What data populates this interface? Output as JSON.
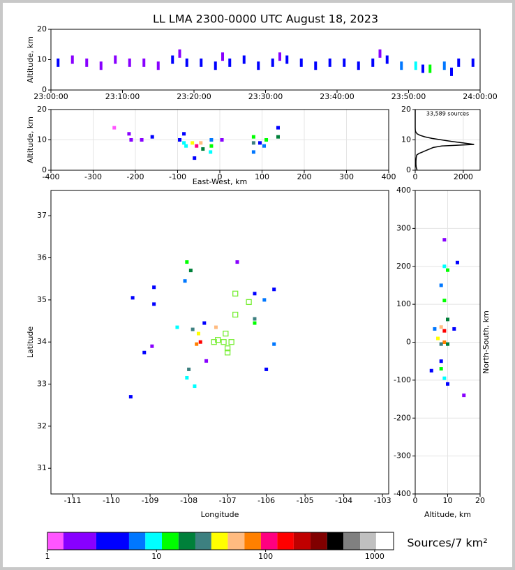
{
  "chart_data": [
    {
      "type": "scatter",
      "title": "LL LMA 2300-0000 UTC August 18, 2023",
      "ylabel": "Altitude, km",
      "xlim": [
        0,
        60
      ],
      "xticks": [
        {
          "value": 0,
          "label": "23:00:00"
        },
        {
          "value": 10,
          "label": "23:10:00"
        },
        {
          "value": 20,
          "label": "23:20:00"
        },
        {
          "value": 30,
          "label": "23:30:00"
        },
        {
          "value": 40,
          "label": "23:40:00"
        },
        {
          "value": 50,
          "label": "23:50:00"
        },
        {
          "value": 60,
          "label": "24:00:00"
        }
      ],
      "ylim": [
        0,
        20
      ],
      "yticks": [
        0,
        10,
        20
      ],
      "grid": false,
      "x": [
        1,
        3,
        5,
        7,
        9,
        11,
        13,
        15,
        17,
        19,
        21,
        23,
        25,
        27,
        29,
        31,
        33,
        35,
        37,
        39,
        41,
        43,
        45,
        47,
        49,
        51,
        53,
        55,
        57,
        59,
        18,
        24,
        32,
        46,
        52,
        56
      ],
      "y": [
        9,
        10,
        9,
        8,
        10,
        9,
        9,
        8,
        10,
        9,
        9,
        8,
        9,
        10,
        8,
        9,
        10,
        9,
        8,
        9,
        9,
        8,
        9,
        10,
        8,
        8,
        7,
        8,
        9,
        9,
        12,
        11,
        11,
        12,
        7,
        6
      ],
      "sources": [
        3,
        2,
        2,
        2,
        1.5,
        2,
        2,
        2,
        3,
        4,
        3,
        3,
        4,
        3,
        4,
        4,
        5,
        3,
        3,
        4,
        3,
        3,
        4,
        4,
        6,
        8,
        12,
        6,
        5,
        4,
        2,
        2,
        2,
        2,
        3,
        3
      ]
    },
    {
      "type": "scatter",
      "xlabel": "East-West, km",
      "ylabel": "Altitude, km",
      "xlim": [
        -400,
        400
      ],
      "xticks": [
        -400,
        -300,
        -200,
        -100,
        0,
        100,
        200,
        300,
        400
      ],
      "ylim": [
        0,
        20
      ],
      "yticks": [
        0,
        10,
        20
      ],
      "grid": true,
      "x": [
        -215,
        -210,
        -160,
        -185,
        -95,
        -85,
        -85,
        -80,
        -65,
        -55,
        -45,
        -40,
        -60,
        -20,
        -22,
        -20,
        80,
        80,
        80,
        110,
        105,
        138,
        138,
        95,
        5,
        -250
      ],
      "y": [
        12,
        10,
        11,
        10,
        10,
        9,
        12,
        8,
        9,
        8,
        9,
        7,
        4,
        8,
        6,
        10,
        9,
        6,
        11,
        10,
        8,
        11,
        14,
        9,
        10,
        14
      ],
      "sources": [
        2,
        2,
        3,
        1.5,
        4,
        8,
        5,
        10,
        40,
        120,
        60,
        20,
        3,
        15,
        8,
        6,
        30,
        6,
        12,
        15,
        6,
        20,
        5,
        4,
        1.5,
        1.2
      ]
    },
    {
      "type": "line",
      "title": "33,589 sources",
      "xlim": [
        0,
        2700
      ],
      "xticks": [
        0,
        2000
      ],
      "ylim": [
        0,
        20
      ],
      "yticks": [
        0,
        10,
        20
      ],
      "grid": true,
      "color": "#000000",
      "x": [
        80,
        40,
        30,
        30,
        40,
        60,
        150,
        300,
        450,
        600,
        750,
        1100,
        2450,
        2000,
        1500,
        1100,
        700,
        400,
        200,
        80,
        30,
        5,
        0,
        0,
        0,
        0
      ],
      "y": [
        0,
        1,
        2,
        3,
        4,
        5,
        5.5,
        6,
        6.5,
        7,
        7.5,
        8,
        8.5,
        9,
        9.5,
        10,
        10.5,
        11,
        11.5,
        12,
        12.5,
        13,
        14,
        16,
        18,
        20
      ]
    },
    {
      "type": "scatter",
      "xlabel": "Longitude",
      "ylabel": "Latitude",
      "xlim": [
        -111.56,
        -102.84
      ],
      "xticks": [
        -111,
        -110,
        -109,
        -108,
        -107,
        -106,
        -105,
        -104,
        -103
      ],
      "ylim": [
        30.39,
        37.6
      ],
      "yticks": [
        31,
        32,
        33,
        34,
        35,
        36,
        37
      ],
      "grid": false,
      "x": [
        -108.05,
        -107.95,
        -108.1,
        -108.9,
        -109.45,
        -108.9,
        -107.3,
        -107.9,
        -107.7,
        -107.8,
        -107.75,
        -108.0,
        -108.05,
        -107.85,
        -109.5,
        -109.15,
        -106.3,
        -106.3,
        -106.05,
        -105.8,
        -106.0,
        -105.8,
        -106.3,
        -108.3,
        -107.6,
        -107.55,
        -108.95,
        -106.75
      ],
      "y": [
        35.9,
        35.7,
        35.45,
        35.3,
        35.05,
        34.9,
        34.35,
        34.3,
        34.0,
        33.95,
        34.2,
        33.35,
        33.15,
        32.95,
        32.7,
        33.75,
        34.55,
        34.45,
        35.0,
        35.25,
        33.35,
        33.95,
        35.15,
        34.35,
        34.45,
        33.55,
        33.9,
        35.9
      ],
      "sources": [
        12,
        20,
        6,
        5,
        4,
        3,
        60,
        30,
        150,
        90,
        40,
        25,
        10,
        8,
        4,
        3,
        25,
        15,
        6,
        5,
        4,
        6,
        3,
        8,
        5,
        2,
        2,
        1.5
      ],
      "stations": {
        "color": "#77ee33",
        "x": [
          -106.8,
          -106.45,
          -106.8,
          -107.05,
          -107.25,
          -107.1,
          -107.35,
          -106.9,
          -107.0,
          -107.0
        ],
        "y": [
          35.15,
          34.95,
          34.65,
          34.2,
          34.05,
          34.0,
          34.0,
          34.0,
          33.85,
          33.75
        ]
      }
    },
    {
      "type": "scatter",
      "xlabel": "Altitude, km",
      "ylabel": "North-South, km",
      "xlim": [
        0,
        20
      ],
      "xticks": [
        0,
        10,
        20
      ],
      "ylim": [
        -400,
        400
      ],
      "yticks": [
        -400,
        -300,
        -200,
        -100,
        0,
        100,
        200,
        300,
        400
      ],
      "grid": true,
      "x": [
        9,
        10,
        8,
        9,
        10,
        8,
        9,
        7,
        9,
        8,
        10,
        8,
        9,
        10,
        8,
        6,
        12,
        13,
        5,
        15,
        9
      ],
      "y": [
        200,
        190,
        150,
        110,
        60,
        40,
        30,
        10,
        0,
        -5,
        -5,
        -70,
        -95,
        -110,
        -50,
        35,
        35,
        210,
        -75,
        -140,
        270
      ],
      "sources": [
        8,
        15,
        6,
        12,
        20,
        60,
        150,
        40,
        80,
        30,
        20,
        15,
        10,
        5,
        5,
        6,
        4,
        3,
        3,
        1.5,
        1.5
      ]
    },
    {
      "type": "colorbar",
      "label": "Sources/7 km²",
      "log": true,
      "lim": [
        1,
        1490
      ],
      "ticks": [
        1,
        10,
        100,
        1000
      ],
      "bounds": [
        1,
        1.4,
        2.8,
        5.6,
        7.9,
        11.2,
        15.9,
        22.7,
        31.8,
        45,
        64,
        90.6,
        128,
        181,
        258,
        366,
        517,
        735,
        1030,
        1490
      ],
      "colors": [
        "#ff55ff",
        "#8800ff",
        "#0000ff",
        "#0077ff",
        "#00ffff",
        "#00ff00",
        "#00803a",
        "#3d8080",
        "#ffff00",
        "#ffbb80",
        "#ff8000",
        "#ff0080",
        "#ff0000",
        "#c00000",
        "#800000",
        "#000000",
        "#808080",
        "#c0c0c0",
        "#ffffff"
      ]
    }
  ]
}
